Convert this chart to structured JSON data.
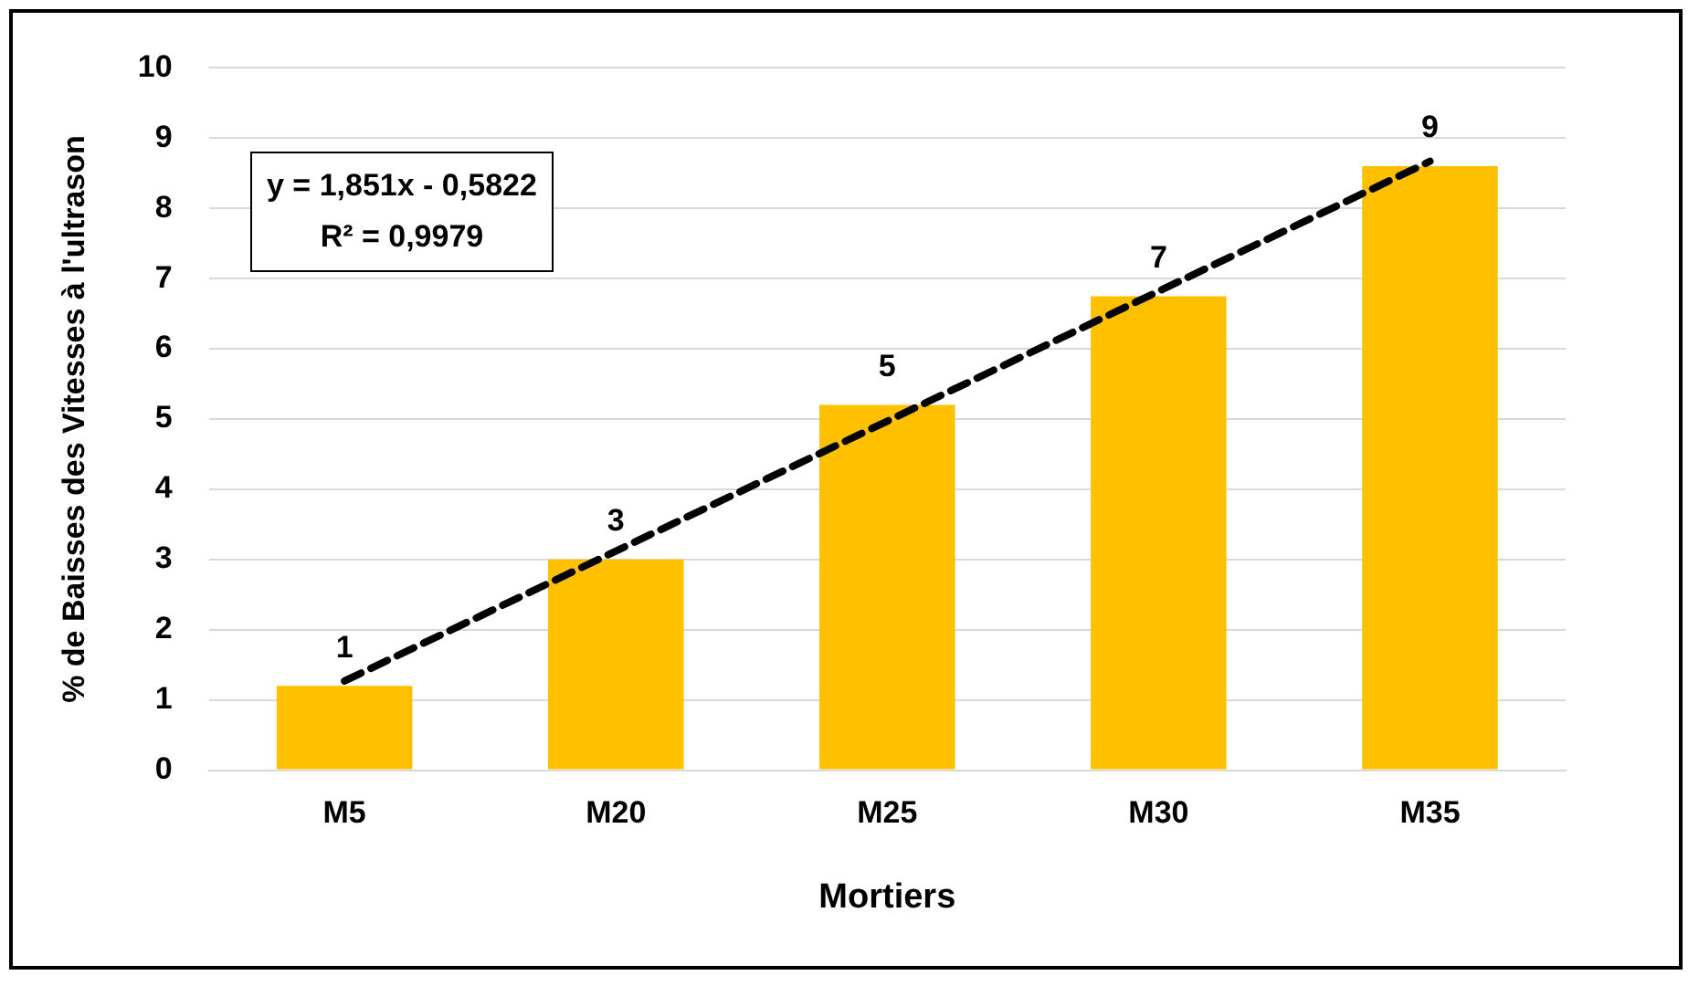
{
  "chart_data": {
    "type": "bar",
    "xlabel": "Mortiers",
    "ylabel": "% de Baisses des Vitesses à l'ultrason",
    "categories": [
      "M5",
      "M20",
      "M25",
      "M30",
      "M35"
    ],
    "series": [
      {
        "color": "#ffc000",
        "values": [
          1.2,
          3.0,
          5.2,
          6.75,
          8.6
        ],
        "value_labels": [
          "1",
          "3",
          "5",
          "7",
          "9"
        ]
      },
      {
        "type": "line",
        "color": "#000000",
        "x": [
          "M5",
          "M20",
          "M25",
          "M30",
          "M35"
        ],
        "values": [
          1.27,
          3.12,
          4.97,
          6.82,
          8.67
        ],
        "line_style": "dashed",
        "marker": "none"
      }
    ],
    "ylim": [
      0,
      10
    ],
    "yticks": [
      0,
      1,
      2,
      3,
      4,
      5,
      6,
      7,
      8,
      9,
      10
    ],
    "grid": "y",
    "legend": false,
    "annotations": [
      "y = 1,851x - 0,5822",
      "R² = 0,9979"
    ]
  }
}
